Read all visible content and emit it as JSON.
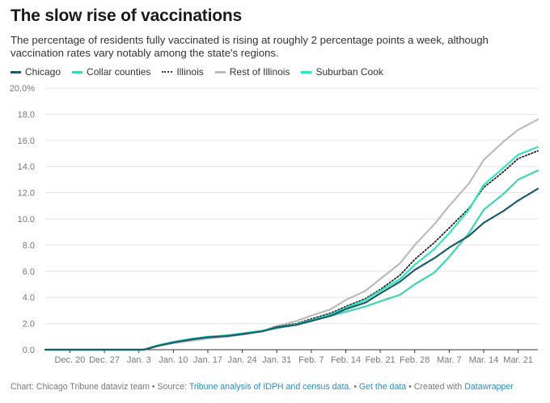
{
  "title": "The slow rise of vaccinations",
  "subtitle": "The percentage of residents fully vaccinated is rising at roughly 2 percentage points a week, although vaccination rates vary notably among the state's regions.",
  "footer": {
    "source_prefix": "Chart: Chicago Tribune dataviz team • Source:",
    "source_link": "Tribune analysis of IDPH and census data.",
    "sep1": "•",
    "get_data": "Get the data",
    "sep2": "• Created with",
    "datawrapper": "Datawrapper"
  },
  "chart_data": {
    "type": "line",
    "title": "The slow rise of vaccinations",
    "xlabel": "",
    "ylabel": "",
    "ylim": [
      0,
      20
    ],
    "yticks": [
      0,
      2,
      4,
      6,
      8,
      10,
      12,
      14,
      16,
      18,
      20
    ],
    "ytick_labels": [
      "0.0",
      "2.0",
      "4.0",
      "6.0",
      "8.0",
      "10.0",
      "12.0",
      "14.0",
      "16.0",
      "18.0",
      "20.0%"
    ],
    "xlim": [
      "2020-12-15",
      "2021-03-25"
    ],
    "xticks": [
      "2020-12-20",
      "2020-12-27",
      "2021-01-03",
      "2021-01-10",
      "2021-01-17",
      "2021-01-24",
      "2021-01-31",
      "2021-02-07",
      "2021-02-14",
      "2021-02-21",
      "2021-02-28",
      "2021-03-07",
      "2021-03-14",
      "2021-03-21"
    ],
    "xtick_labels": [
      "Dec. 20",
      "Dec. 27",
      "Jan. 3",
      "Jan. 10",
      "Jan. 17",
      "Jan. 24",
      "Jan. 31",
      "Feb. 7",
      "Feb. 14",
      "Feb. 21",
      "Feb. 28",
      "Mar. 7",
      "Mar. 14",
      "Mar. 21"
    ],
    "x": [
      "2020-12-15",
      "2021-01-04",
      "2021-01-07",
      "2021-01-10",
      "2021-01-14",
      "2021-01-17",
      "2021-01-21",
      "2021-01-24",
      "2021-01-28",
      "2021-01-31",
      "2021-02-04",
      "2021-02-07",
      "2021-02-11",
      "2021-02-14",
      "2021-02-18",
      "2021-02-21",
      "2021-02-25",
      "2021-02-28",
      "2021-03-04",
      "2021-03-07",
      "2021-03-11",
      "2021-03-14",
      "2021-03-18",
      "2021-03-21",
      "2021-03-25"
    ],
    "legend_position": "top-left",
    "grid": true,
    "series": [
      {
        "name": "Chicago",
        "color": "#1a5c6e",
        "dash": "solid",
        "values": [
          0.0,
          0.0,
          0.3,
          0.55,
          0.8,
          0.95,
          1.05,
          1.2,
          1.4,
          1.7,
          1.9,
          2.2,
          2.6,
          3.1,
          3.6,
          4.3,
          5.2,
          6.1,
          7.0,
          7.8,
          8.7,
          9.7,
          10.6,
          11.4,
          12.3
        ]
      },
      {
        "name": "Collar counties",
        "color": "#3dd6b0",
        "dash": "solid",
        "values": [
          0.0,
          0.0,
          0.35,
          0.6,
          0.85,
          0.95,
          1.1,
          1.25,
          1.45,
          1.65,
          1.9,
          2.2,
          2.6,
          2.9,
          3.3,
          3.7,
          4.2,
          5.0,
          5.9,
          7.1,
          8.9,
          10.7,
          11.9,
          13.0,
          13.7
        ]
      },
      {
        "name": "Illinois",
        "color": "#222222",
        "dash": "dotted",
        "values": [
          0.0,
          0.0,
          0.3,
          0.55,
          0.8,
          0.95,
          1.1,
          1.25,
          1.45,
          1.75,
          2.0,
          2.35,
          2.8,
          3.3,
          3.9,
          4.6,
          5.7,
          6.9,
          8.2,
          9.3,
          10.8,
          12.4,
          13.6,
          14.6,
          15.2
        ]
      },
      {
        "name": "Rest of Illinois",
        "color": "#bbbbbb",
        "dash": "solid",
        "values": [
          0.0,
          0.0,
          0.3,
          0.5,
          0.7,
          0.85,
          1.0,
          1.15,
          1.4,
          1.8,
          2.2,
          2.6,
          3.1,
          3.8,
          4.5,
          5.4,
          6.6,
          8.0,
          9.6,
          11.0,
          12.7,
          14.5,
          15.9,
          16.8,
          17.6
        ]
      },
      {
        "name": "Suburban Cook",
        "color": "#2ee8bb",
        "dash": "solid",
        "values": [
          0.0,
          0.0,
          0.35,
          0.6,
          0.85,
          1.0,
          1.1,
          1.25,
          1.45,
          1.7,
          1.95,
          2.25,
          2.7,
          3.2,
          3.8,
          4.5,
          5.4,
          6.5,
          7.7,
          8.9,
          10.7,
          12.6,
          13.9,
          14.9,
          15.5
        ]
      }
    ]
  }
}
